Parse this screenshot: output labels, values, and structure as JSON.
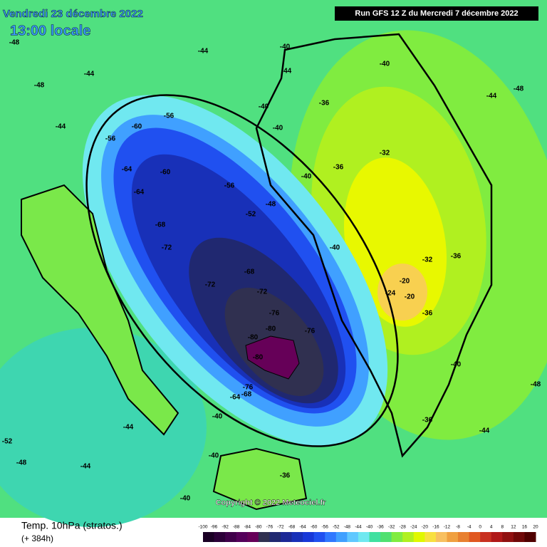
{
  "header": {
    "date": "Vendredi 23 décembre 2022",
    "time": "13:00 locale",
    "run": "Run GFS 12 Z du Mercredi 7 décembre 2022"
  },
  "footer": {
    "title": "Temp. 10hPa (stratos.)",
    "lead": "(+ 384h)",
    "copyright": "Copyright © 2022 Meteociel.fr"
  },
  "scale": {
    "labels": [
      -100,
      -96,
      -92,
      -88,
      -84,
      -80,
      -76,
      -72,
      -68,
      -64,
      -60,
      -56,
      -52,
      -48,
      -44,
      -40,
      -36,
      -32,
      -28,
      -24,
      -20,
      -16,
      -12,
      -8,
      -4,
      0,
      4,
      8,
      12,
      16,
      20
    ],
    "colors": [
      "#1a0024",
      "#2c0038",
      "#40004a",
      "#55005a",
      "#660058",
      "#303050",
      "#202870",
      "#1c2896",
      "#1830b8",
      "#1838d8",
      "#2050f0",
      "#3078ff",
      "#40a0ff",
      "#60c8ff",
      "#70e8f0",
      "#40e0a0",
      "#50e070",
      "#80ec40",
      "#b0f020",
      "#e0f800",
      "#f8e040",
      "#f8c060",
      "#f0a040",
      "#e88030",
      "#e05820",
      "#c83020",
      "#b01818",
      "#901010",
      "#700808",
      "#500000"
    ]
  },
  "contour_labels": [
    -48,
    -48,
    -44,
    -44,
    -44,
    -40,
    -40,
    -40,
    -40,
    -36,
    -36,
    -32,
    -36,
    -32,
    -20,
    -24,
    -20,
    -36,
    -40,
    -44,
    -48,
    -48,
    -44,
    -56,
    -60,
    -56,
    -64,
    -64,
    -60,
    -68,
    -72,
    -72,
    -68,
    -72,
    -76,
    -80,
    -80,
    -80,
    -76,
    -64,
    -68,
    -76,
    -56,
    -52,
    -48,
    -40,
    -40,
    -44,
    -36,
    -40,
    -44,
    -52,
    -48,
    -44,
    -40,
    -36,
    -40
  ]
}
